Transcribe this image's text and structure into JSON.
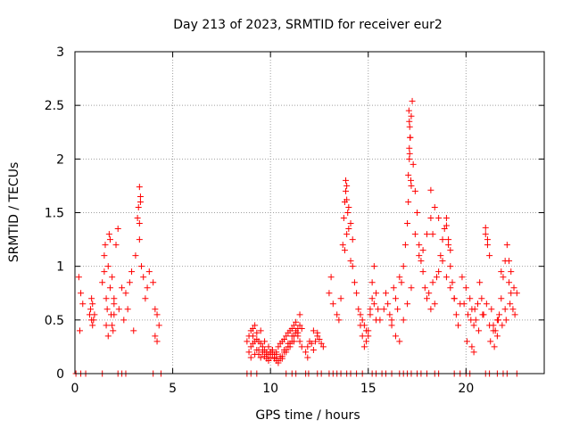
{
  "chart_data": {
    "type": "scatter",
    "title": "Day 213 of 2023, SRMTID for receiver eur2",
    "xlabel": "GPS time / hours",
    "ylabel": "SRMTID / TECUs",
    "xlim": [
      0,
      24
    ],
    "ylim": [
      0,
      3
    ],
    "x_ticks": [
      0,
      5,
      10,
      15,
      20
    ],
    "y_ticks": [
      0,
      0.5,
      1,
      1.5,
      2,
      2.5,
      3
    ],
    "x_tick_labels": [
      "0",
      "5",
      "10",
      "15",
      "20"
    ],
    "y_tick_labels": [
      "0",
      "0.5",
      "1",
      "1.5",
      "2",
      "2.5",
      "3"
    ],
    "grid": true,
    "marker": "+",
    "series": [
      {
        "name": "eur2",
        "color": "#ff0000",
        "x": [
          0.2,
          0.3,
          0.4,
          0.25,
          0.75,
          0.8,
          0.85,
          0.9,
          0.95,
          1.0,
          0.85,
          0.9,
          1.4,
          1.5,
          1.55,
          1.6,
          1.65,
          1.7,
          1.75,
          1.8,
          1.85,
          1.9,
          1.95,
          2.0,
          2.1,
          2.2,
          2.25,
          1.6,
          1.7,
          1.8,
          1.9,
          2.0,
          2.5,
          2.6,
          2.7,
          2.8,
          2.9,
          3.0,
          3.1,
          3.2,
          3.25,
          3.3,
          3.35,
          3.4,
          3.5,
          3.6,
          3.7,
          3.8,
          4.0,
          4.1,
          4.2,
          4.3,
          4.1,
          4.2,
          3.3,
          3.3,
          3.35,
          1.5,
          2.0,
          2.4,
          8.8,
          8.9,
          9.0,
          9.1,
          9.2,
          9.3,
          9.4,
          9.5,
          9.6,
          9.7,
          9.8,
          9.9,
          10.0,
          10.1,
          10.2,
          10.3,
          10.4,
          10.5,
          10.6,
          10.7,
          10.8,
          10.9,
          11.0,
          11.1,
          11.2,
          11.3,
          11.4,
          11.5,
          11.6,
          8.9,
          9.0,
          9.1,
          9.2,
          9.3,
          9.4,
          9.5,
          9.6,
          9.7,
          9.8,
          9.9,
          10.0,
          10.1,
          10.2,
          10.3,
          10.4,
          10.5,
          10.6,
          10.7,
          10.8,
          10.9,
          11.0,
          11.1,
          11.2,
          11.3,
          11.4,
          11.5,
          9.0,
          9.2,
          9.4,
          9.6,
          9.8,
          10.0,
          10.2,
          10.4,
          10.6,
          10.8,
          11.0,
          11.2,
          11.4,
          11.6,
          9.1,
          9.3,
          9.5,
          9.7,
          9.9,
          10.1,
          10.3,
          10.5,
          10.7,
          10.9,
          11.1,
          11.3,
          11.5,
          11.8,
          11.9,
          12.0,
          12.1,
          12.2,
          12.3,
          12.4,
          12.5,
          12.6,
          12.7,
          12.2,
          12.4,
          11.9,
          13.0,
          13.1,
          13.2,
          13.4,
          13.5,
          13.6,
          13.7,
          13.75,
          13.8,
          13.85,
          13.9,
          13.95,
          14.0,
          14.1,
          14.2,
          14.3,
          14.4,
          14.5,
          14.6,
          14.7,
          14.8,
          14.9,
          15.0,
          15.1,
          15.2,
          15.3,
          15.4,
          15.5,
          15.6,
          14.6,
          14.7,
          14.8,
          14.9,
          15.0,
          15.1,
          15.2,
          15.3,
          15.4,
          13.8,
          13.9,
          14.0,
          14.1,
          14.2,
          13.85,
          13.9,
          15.8,
          15.9,
          16.0,
          16.1,
          16.2,
          16.3,
          16.4,
          16.5,
          16.6,
          16.7,
          16.8,
          16.9,
          17.0,
          17.05,
          17.1,
          17.15,
          17.2,
          17.25,
          17.3,
          17.4,
          17.5,
          17.6,
          17.7,
          17.8,
          17.9,
          18.0,
          18.1,
          18.2,
          18.3,
          18.4,
          18.5,
          18.6,
          18.7,
          18.8,
          18.9,
          19.0,
          19.1,
          19.2,
          19.3,
          19.4,
          19.5,
          19.6,
          19.7,
          19.8,
          16.2,
          16.4,
          16.6,
          16.8,
          17.0,
          17.2,
          17.4,
          17.6,
          17.8,
          18.0,
          18.2,
          18.4,
          18.6,
          18.8,
          19.0,
          19.2,
          19.4,
          17.08,
          17.1,
          17.12,
          17.14,
          17.1,
          17.12,
          17.18,
          17.2,
          17.05,
          18.2,
          18.3,
          19.0,
          19.1,
          19.2,
          19.9,
          20.0,
          20.1,
          20.2,
          20.3,
          20.4,
          20.5,
          20.6,
          20.7,
          20.8,
          20.9,
          21.0,
          21.1,
          21.2,
          21.3,
          21.4,
          21.5,
          21.6,
          21.7,
          21.8,
          21.9,
          22.0,
          22.1,
          22.2,
          22.3,
          22.4,
          22.5,
          22.6,
          20.05,
          20.25,
          20.45,
          20.65,
          20.85,
          21.05,
          21.25,
          21.45,
          21.65,
          21.85,
          22.05,
          22.25,
          22.45,
          21.0,
          21.1,
          21.8,
          22.0,
          22.2,
          22.3,
          20.3,
          20.4,
          21.2,
          21.4,
          21.6,
          0.05,
          0.3,
          0.55,
          1.4,
          2.2,
          2.4,
          2.6,
          4.0,
          4.4,
          8.8,
          9.0,
          9.3,
          10.8,
          11.1,
          11.3,
          11.8,
          11.95,
          12.4,
          12.6,
          13.0,
          13.2,
          13.4,
          13.6,
          13.9,
          14.1,
          14.4,
          14.7,
          15.2,
          15.4,
          15.7,
          15.9,
          16.2,
          16.6,
          16.8,
          17.0,
          17.2,
          17.5,
          17.7,
          18.0,
          18.4,
          18.6,
          19.4,
          19.7,
          20.0,
          20.2,
          21.0,
          21.2,
          21.6,
          21.9,
          22.1,
          22.6
        ],
        "y": [
          0.9,
          0.75,
          0.65,
          0.4,
          0.55,
          0.6,
          0.5,
          0.65,
          0.5,
          0.55,
          0.7,
          0.45,
          0.85,
          1.1,
          1.2,
          0.7,
          0.6,
          1.0,
          1.3,
          1.25,
          0.55,
          0.45,
          0.4,
          0.7,
          1.2,
          1.35,
          0.6,
          0.45,
          0.35,
          0.8,
          0.9,
          0.55,
          0.5,
          0.75,
          0.6,
          0.85,
          0.95,
          0.4,
          1.1,
          1.45,
          1.55,
          1.74,
          1.65,
          1.0,
          0.9,
          0.7,
          0.8,
          0.95,
          0.85,
          0.6,
          0.55,
          0.45,
          0.35,
          0.3,
          1.25,
          1.4,
          1.6,
          0.95,
          0.65,
          0.8,
          0.3,
          0.35,
          0.4,
          0.42,
          0.45,
          0.38,
          0.3,
          0.28,
          0.25,
          0.22,
          0.2,
          0.18,
          0.2,
          0.22,
          0.18,
          0.2,
          0.25,
          0.28,
          0.3,
          0.32,
          0.35,
          0.38,
          0.4,
          0.42,
          0.45,
          0.4,
          0.35,
          0.3,
          0.25,
          0.2,
          0.25,
          0.28,
          0.3,
          0.22,
          0.18,
          0.15,
          0.2,
          0.16,
          0.14,
          0.12,
          0.15,
          0.18,
          0.14,
          0.12,
          0.1,
          0.14,
          0.16,
          0.2,
          0.22,
          0.25,
          0.28,
          0.3,
          0.35,
          0.38,
          0.42,
          0.45,
          0.15,
          0.18,
          0.22,
          0.2,
          0.18,
          0.2,
          0.15,
          0.12,
          0.14,
          0.2,
          0.25,
          0.3,
          0.38,
          0.42,
          0.35,
          0.32,
          0.4,
          0.3,
          0.25,
          0.22,
          0.18,
          0.16,
          0.22,
          0.28,
          0.35,
          0.48,
          0.55,
          0.2,
          0.25,
          0.3,
          0.28,
          0.22,
          0.3,
          0.35,
          0.32,
          0.28,
          0.25,
          0.4,
          0.38,
          0.15,
          0.75,
          0.9,
          0.65,
          0.55,
          0.5,
          0.7,
          1.2,
          1.45,
          1.6,
          1.8,
          1.75,
          1.5,
          1.35,
          1.05,
          1.0,
          0.85,
          0.75,
          0.6,
          0.55,
          0.5,
          0.45,
          0.4,
          0.35,
          0.6,
          0.85,
          1.0,
          0.75,
          0.6,
          0.5,
          0.45,
          0.35,
          0.25,
          0.3,
          0.4,
          0.55,
          0.7,
          0.65,
          0.5,
          1.15,
          1.3,
          1.55,
          1.4,
          1.25,
          1.7,
          1.62,
          0.6,
          0.75,
          0.65,
          0.55,
          0.5,
          0.8,
          0.7,
          0.6,
          0.9,
          0.85,
          1.0,
          1.2,
          1.4,
          1.85,
          2.0,
          2.2,
          2.4,
          2.54,
          1.95,
          1.7,
          1.5,
          1.2,
          1.05,
          0.95,
          0.8,
          0.7,
          0.75,
          0.6,
          0.85,
          0.65,
          0.9,
          0.95,
          1.1,
          1.25,
          1.35,
          1.45,
          1.2,
          1.0,
          0.85,
          0.7,
          0.55,
          0.45,
          0.65,
          0.9,
          0.45,
          0.35,
          0.3,
          0.5,
          0.65,
          0.8,
          1.3,
          1.1,
          1.15,
          1.3,
          1.71,
          1.55,
          1.45,
          1.05,
          0.9,
          0.8,
          0.7,
          2.45,
          2.35,
          2.3,
          2.2,
          2.1,
          2.05,
          1.8,
          1.75,
          1.6,
          1.45,
          1.3,
          1.38,
          1.25,
          1.15,
          0.65,
          0.8,
          0.55,
          0.7,
          0.6,
          0.45,
          0.5,
          0.65,
          0.85,
          0.7,
          0.55,
          1.3,
          1.2,
          1.1,
          0.6,
          0.45,
          0.4,
          0.35,
          0.55,
          0.7,
          0.9,
          1.05,
          1.2,
          1.05,
          0.95,
          0.6,
          0.55,
          0.75,
          0.3,
          0.5,
          0.6,
          0.4,
          0.55,
          0.65,
          0.3,
          0.25,
          0.5,
          0.45,
          0.5,
          0.65,
          0.8,
          1.36,
          1.25,
          0.95,
          0.6,
          0.85,
          0.75,
          0.25,
          0.2,
          0.45,
          0.4,
          0.5,
          0,
          0,
          0,
          0,
          0,
          0,
          0,
          0,
          0,
          0,
          0,
          0,
          0,
          0,
          0,
          0,
          0,
          0,
          0,
          0,
          0,
          0,
          0,
          0,
          0,
          0,
          0,
          0,
          0,
          0,
          0,
          0,
          0,
          0,
          0,
          0,
          0,
          0,
          0,
          0,
          0,
          0,
          0,
          0,
          0,
          0,
          0,
          0,
          0,
          0,
          0
        ]
      }
    ]
  }
}
